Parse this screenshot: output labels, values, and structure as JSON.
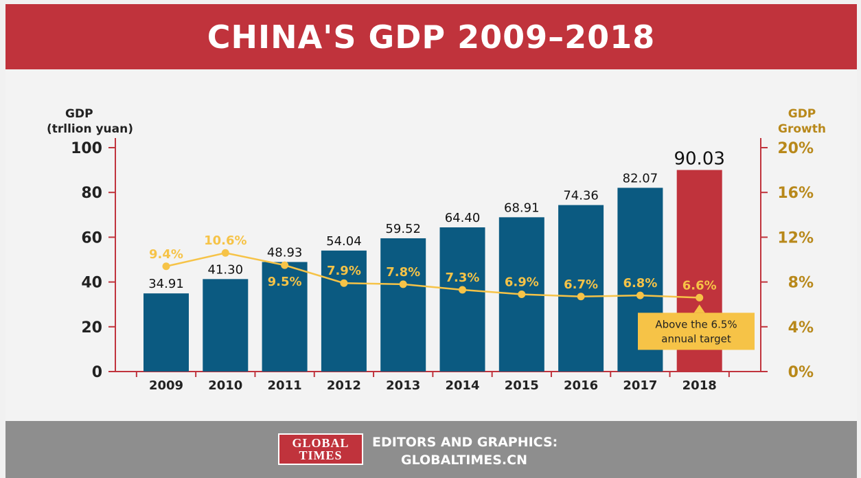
{
  "header": {
    "title": "CHINA'S GDP 2009–2018"
  },
  "chart_data": {
    "type": "bar",
    "categories": [
      "2009",
      "2010",
      "2011",
      "2012",
      "2013",
      "2014",
      "2015",
      "2016",
      "2017",
      "2018"
    ],
    "series": [
      {
        "values": [
          34.91,
          41.3,
          48.93,
          54.04,
          59.52,
          64.4,
          68.91,
          74.36,
          82.07,
          90.03
        ],
        "labels": [
          "34.91",
          "41.30",
          "48.93",
          "54.04",
          "59.52",
          "64.40",
          "68.91",
          "74.36",
          "82.07",
          "90.03"
        ],
        "axis": "left",
        "type": "bar"
      },
      {
        "values": [
          9.4,
          10.6,
          9.5,
          7.9,
          7.8,
          7.3,
          6.9,
          6.7,
          6.8,
          6.6
        ],
        "labels": [
          "9.4%",
          "10.6%",
          "9.5%",
          "7.9%",
          "7.8%",
          "7.3%",
          "6.9%",
          "6.7%",
          "6.8%",
          "6.6%"
        ],
        "axis": "right",
        "type": "line"
      }
    ],
    "ylabel_line1": "GDP",
    "ylabel_line2": "(trllion yuan)",
    "y2label_line1": "GDP",
    "y2label_line2": "Growth",
    "ylim": [
      0,
      100
    ],
    "y2lim": [
      0,
      20
    ],
    "yticks": [
      "0",
      "20",
      "40",
      "60",
      "80",
      "100"
    ],
    "y2ticks": [
      "0%",
      "4%",
      "8%",
      "12%",
      "16%",
      "20%"
    ],
    "annotation_line1": "Above the 6.5%",
    "annotation_line2": "annual target",
    "colors": {
      "bar": "#0b5a81",
      "highlight_bar": "#c0333c",
      "line": "#f6c347",
      "axis": "#c0333c",
      "right_axis_text": "#b8881a"
    }
  },
  "footer": {
    "logo_line1": "GLOBAL",
    "logo_line2": "TIMES",
    "credit_line1": "EDITORS AND GRAPHICS:",
    "credit_line2": "GLOBALTIMES.CN"
  }
}
